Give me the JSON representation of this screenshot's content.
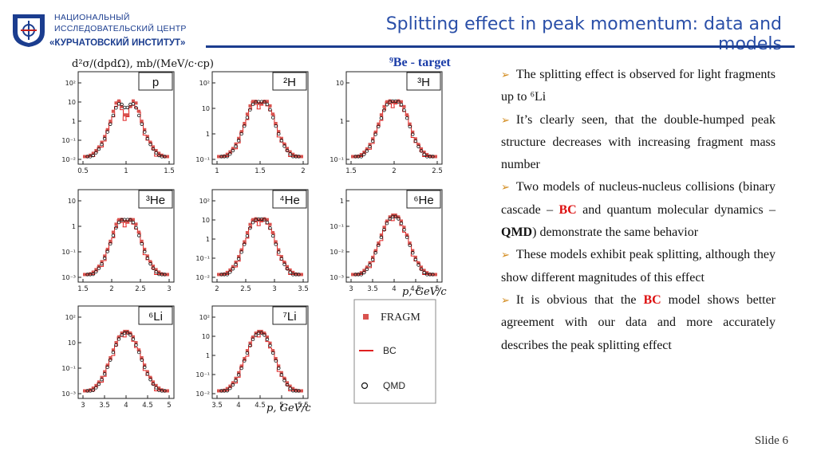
{
  "logo": {
    "line1": "НАЦИОНАЛЬНЫЙ",
    "line2": "ИССЛЕДОВАТЕЛЬСКИЙ ЦЕНТР",
    "line3": "«КУРЧАТОВСКИЙ ИНСТИТУТ»"
  },
  "title": "Splitting effect in peak momentum: data and models",
  "figure": {
    "ylabel": "d²σ/(dpdΩ), mb/(MeV/c·cp)",
    "target": "⁹Be - target",
    "xlabel": "p, GeV/c",
    "panels": [
      {
        "label": "p",
        "xticks": [
          "0.5",
          "1",
          "1.5"
        ],
        "yticks": [
          "10²",
          "10",
          "1",
          "10⁻¹",
          "10⁻²"
        ]
      },
      {
        "label": "²H",
        "xticks": [
          "1",
          "1.5",
          "2"
        ],
        "yticks": [
          "10²",
          "10",
          "1",
          "10⁻¹"
        ]
      },
      {
        "label": "³H",
        "xticks": [
          "1.5",
          "2",
          "2.5"
        ],
        "yticks": [
          "10",
          "1",
          "10⁻¹"
        ]
      },
      {
        "label": "³He",
        "xticks": [
          "1.5",
          "2",
          "2.5",
          "3"
        ],
        "yticks": [
          "10",
          "1",
          "10⁻¹",
          "10⁻³"
        ]
      },
      {
        "label": "⁴He",
        "xticks": [
          "2",
          "2.5",
          "3",
          "3.5"
        ],
        "yticks": [
          "10²",
          "10",
          "1",
          "10⁻¹",
          "10⁻²"
        ]
      },
      {
        "label": "⁶He",
        "xticks": [
          "3",
          "3.5",
          "4",
          "4.5",
          "5"
        ],
        "yticks": [
          "1",
          "10⁻¹",
          "10⁻²",
          "10⁻³"
        ]
      },
      {
        "label": "⁶Li",
        "xticks": [
          "3",
          "3.5",
          "4",
          "4.5",
          "5"
        ],
        "yticks": [
          "10²",
          "10",
          "10⁻¹",
          "10⁻³"
        ]
      },
      {
        "label": "⁷Li",
        "xticks": [
          "3.5",
          "4",
          "4.5",
          "5",
          "5.5"
        ],
        "yticks": [
          "10²",
          "10",
          "1",
          "10⁻¹",
          "10⁻²"
        ]
      }
    ],
    "legend": {
      "fragm": "FRAGM",
      "bc": "BC",
      "qmd": "QMD"
    },
    "colors": {
      "data": "#d9534f",
      "bc": "#e02020",
      "qmd": "#111111"
    }
  },
  "bullets": [
    [
      {
        "t": "The splitting effect is observed for light fragments up to ⁶Li"
      }
    ],
    [
      {
        "t": "It’s clearly seen, that the double-humped peak structure decreases with increasing fragment mass number"
      }
    ],
    [
      {
        "t": "Two models of nucleus-nucleus collisions (binary cascade – "
      },
      {
        "t": "BC",
        "s": "red"
      },
      {
        "t": " and quantum molecular dynamics – "
      },
      {
        "t": "QMD",
        "s": "bold"
      },
      {
        "t": ") demonstrate the same behavior"
      }
    ],
    [
      {
        "t": "These models exhibit peak splitting, although they show different magnitudes of this effect"
      }
    ],
    [
      {
        "t": "It is obvious that the "
      },
      {
        "t": "BC",
        "s": "red"
      },
      {
        "t": " model shows better agreement with our data and more accurately describes the peak splitting effect"
      }
    ]
  ],
  "slide_number": "Slide 6"
}
